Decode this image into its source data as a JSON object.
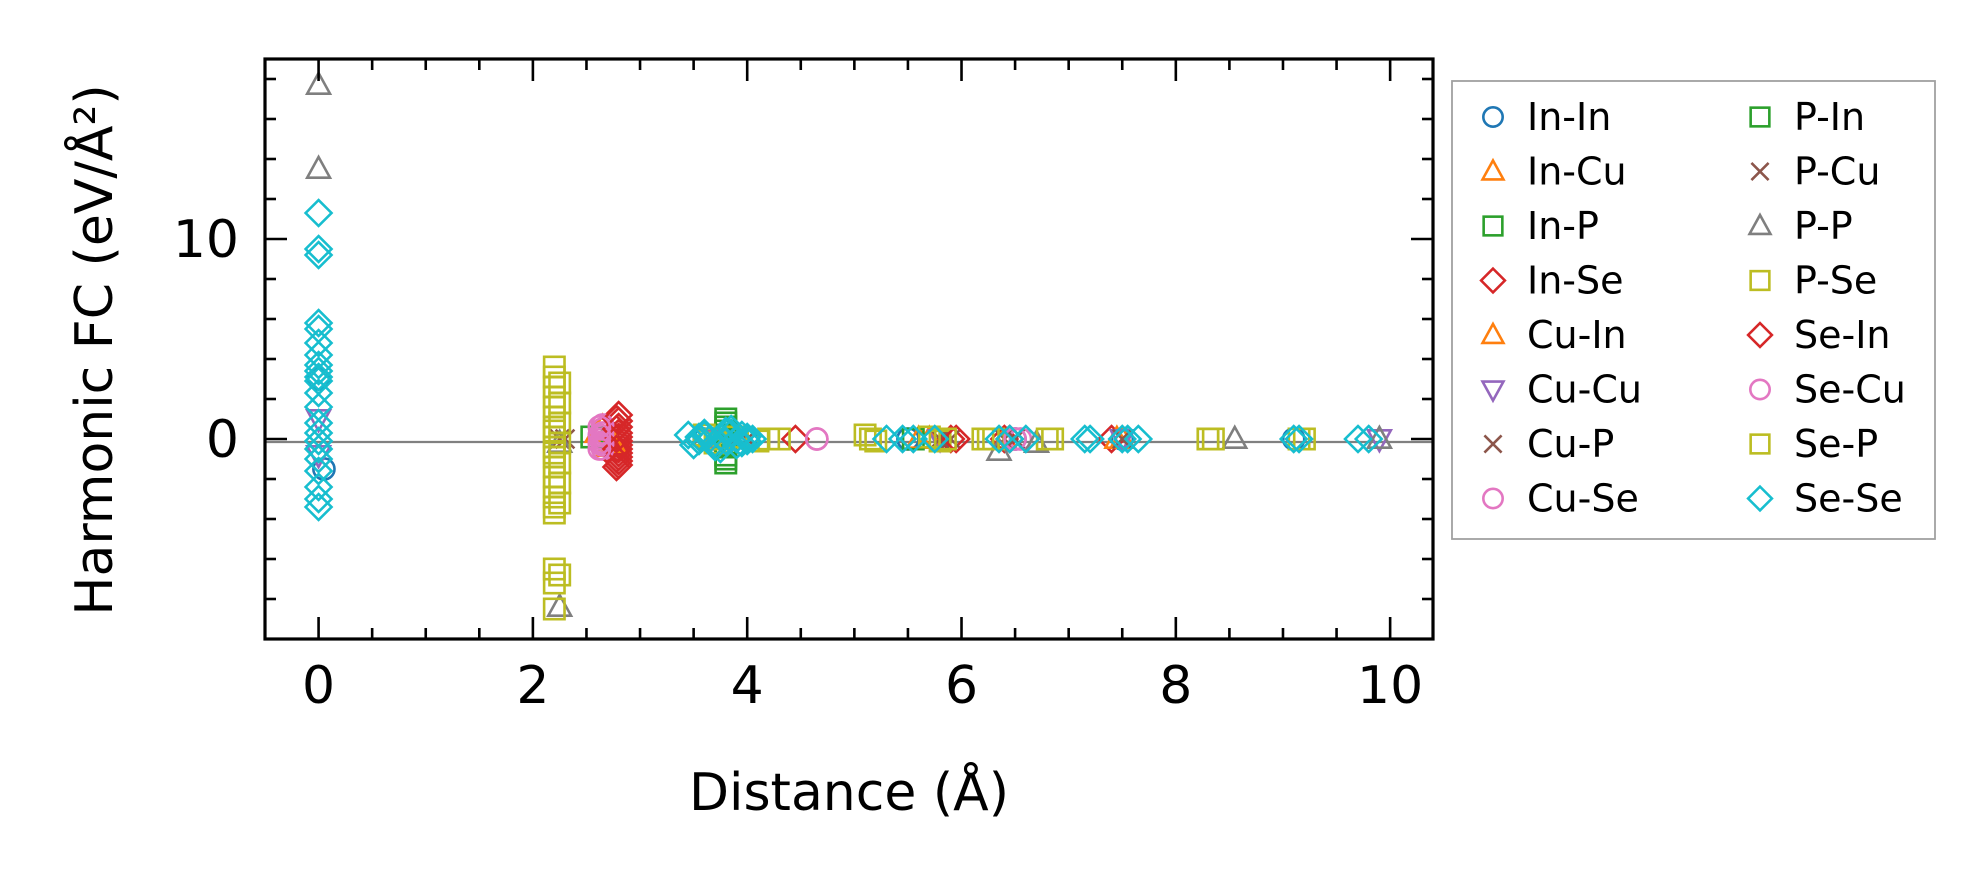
{
  "chart_data": {
    "type": "scatter",
    "title": "",
    "xlabel": "Distance (Å)",
    "ylabel": "Harmonic FC (eV/Å²)",
    "xlim": [
      -0.5,
      10.4
    ],
    "ylim": [
      -10,
      19
    ],
    "xticks": [
      "0",
      "2",
      "4",
      "6",
      "8",
      "10"
    ],
    "yticks": [
      "0",
      "10"
    ],
    "xtick_values": [
      0,
      2,
      4,
      6,
      8,
      10
    ],
    "ytick_values": [
      0,
      10
    ],
    "zero_line": true,
    "grid": false,
    "legend_position": "outside-right",
    "series": [
      {
        "name": "In-In",
        "marker": "circle",
        "color": "#1f77b4",
        "x": [
          0,
          0.05,
          3.6,
          4.0,
          5.5,
          6.5,
          7.5,
          9.1
        ],
        "y": [
          3.0,
          -1.5,
          0,
          0,
          0,
          0,
          0,
          0
        ]
      },
      {
        "name": "In-Cu",
        "marker": "triangle-up",
        "color": "#ff7f0e",
        "x": [
          2.6,
          2.7,
          3.7,
          5.6,
          6.4,
          7.5
        ],
        "y": [
          0.3,
          -0.4,
          0,
          0,
          0,
          0
        ]
      },
      {
        "name": "In-P",
        "marker": "square",
        "color": "#2ca02c",
        "x": [
          2.55,
          3.8,
          3.8,
          3.8,
          3.8,
          3.8,
          3.8
        ],
        "y": [
          0.1,
          1.0,
          0.6,
          0.2,
          -0.3,
          -0.8,
          -1.2
        ]
      },
      {
        "name": "In-Se",
        "marker": "diamond",
        "color": "#d62728",
        "x": [
          2.8,
          2.8,
          2.8,
          2.8,
          2.8,
          2.8,
          2.8,
          2.8,
          2.8,
          2.8,
          2.8,
          2.8,
          4.45,
          5.9,
          6.4,
          7.4
        ],
        "y": [
          1.2,
          0.9,
          0.6,
          0.3,
          0.1,
          -0.1,
          -0.3,
          -0.5,
          -0.7,
          -0.9,
          -1.1,
          -1.3,
          0,
          0,
          0,
          0
        ]
      },
      {
        "name": "Cu-In",
        "marker": "triangle-up",
        "color": "#ff7f0e",
        "x": [
          2.65,
          2.75,
          5.7,
          7.45
        ],
        "y": [
          0.6,
          -0.2,
          0,
          0
        ]
      },
      {
        "name": "Cu-Cu",
        "marker": "triangle-down",
        "color": "#9467bd",
        "x": [
          0,
          0,
          3.7,
          5.8,
          7.5,
          9.9
        ],
        "y": [
          1.0,
          -0.8,
          0,
          0,
          0,
          0
        ]
      },
      {
        "name": "Cu-P",
        "marker": "x",
        "color": "#8c564b",
        "x": [
          2.3,
          4.0,
          5.8,
          6.4,
          7.5
        ],
        "y": [
          0,
          0,
          0,
          0,
          0
        ]
      },
      {
        "name": "Cu-Se",
        "marker": "circle",
        "color": "#e377c2",
        "x": [
          2.65,
          2.65,
          2.65,
          2.65,
          2.65,
          2.65,
          2.65,
          2.65,
          4.65,
          6.55
        ],
        "y": [
          0.7,
          0.5,
          0.3,
          0.15,
          0.0,
          -0.15,
          -0.3,
          -0.5,
          0,
          0
        ]
      },
      {
        "name": "P-In",
        "marker": "square",
        "color": "#2ca02c",
        "x": [
          3.8,
          3.8,
          3.8,
          3.8,
          5.55
        ],
        "y": [
          0.8,
          0.4,
          -0.4,
          -1.0,
          0
        ]
      },
      {
        "name": "P-Cu",
        "marker": "x",
        "color": "#8c564b",
        "x": [
          2.25,
          3.9,
          5.9,
          6.5
        ],
        "y": [
          0,
          0,
          0,
          0
        ]
      },
      {
        "name": "P-P",
        "marker": "triangle-up",
        "color": "#7f7f7f",
        "x": [
          0,
          0,
          2.25,
          2.25,
          6.35,
          6.7,
          8.55,
          9.9
        ],
        "y": [
          17.7,
          13.5,
          -0.2,
          -8.4,
          -0.6,
          -0.2,
          0,
          0
        ]
      },
      {
        "name": "P-Se",
        "marker": "square",
        "color": "#bcbd22",
        "x": [
          2.2,
          2.2,
          2.2,
          2.2,
          2.2,
          2.2,
          2.2,
          2.2,
          2.2,
          2.2,
          2.2,
          2.2,
          2.2,
          2.2,
          2.2,
          2.2,
          2.2,
          2.2,
          2.2,
          2.2,
          2.2,
          3.6,
          3.7,
          3.9,
          4.1,
          4.3,
          5.1,
          5.2,
          5.7,
          5.8,
          6.2,
          6.3,
          6.8,
          8.3,
          8.35,
          9.15
        ],
        "y": [
          3.6,
          3.1,
          2.6,
          2.1,
          1.6,
          1.1,
          0.6,
          0.1,
          -0.4,
          -0.9,
          -1.4,
          -1.9,
          -2.4,
          -2.9,
          -3.4,
          -3.7,
          -6.5,
          -7.2,
          -8.5,
          0.4,
          -0.7,
          0.2,
          -0.2,
          0.1,
          -0.1,
          0,
          0.2,
          -0.1,
          0.1,
          -0.1,
          0,
          0,
          0,
          0,
          0,
          0
        ]
      },
      {
        "name": "Se-In",
        "marker": "diamond",
        "color": "#d62728",
        "x": [
          2.78,
          2.78,
          2.78,
          2.78,
          2.78,
          2.78,
          5.95,
          6.45
        ],
        "y": [
          1.0,
          0.5,
          0.0,
          -0.5,
          -1.0,
          -1.4,
          0,
          0
        ]
      },
      {
        "name": "Se-Cu",
        "marker": "circle",
        "color": "#e377c2",
        "x": [
          2.62,
          2.62,
          2.62,
          2.62,
          4.65,
          6.5
        ],
        "y": [
          0.6,
          0.2,
          -0.2,
          -0.5,
          0,
          0
        ]
      },
      {
        "name": "Se-P",
        "marker": "square",
        "color": "#bcbd22",
        "x": [
          2.25,
          2.25,
          2.25,
          2.25,
          2.25,
          2.25,
          2.25,
          2.25,
          3.65,
          4.2,
          5.15,
          5.85,
          6.25,
          6.85,
          8.3,
          9.2
        ],
        "y": [
          2.8,
          1.8,
          0.8,
          -0.2,
          -1.2,
          -2.2,
          -3.2,
          -6.8,
          0,
          0,
          0,
          0,
          0,
          0,
          0,
          0
        ]
      },
      {
        "name": "Se-Se",
        "marker": "diamond",
        "color": "#17becf",
        "x": [
          0,
          0,
          0,
          0,
          0,
          0,
          0,
          0,
          0,
          0,
          0,
          0,
          0,
          0,
          0,
          0,
          0,
          0,
          0,
          0,
          0,
          0,
          3.45,
          3.55,
          3.6,
          3.65,
          3.7,
          3.75,
          3.8,
          3.85,
          3.9,
          3.95,
          4.0,
          4.05,
          3.5,
          3.6,
          3.7,
          3.8,
          3.9,
          4.0,
          3.55,
          3.75,
          3.85,
          3.95,
          5.3,
          5.45,
          5.55,
          5.75,
          6.35,
          6.45,
          6.6,
          7.15,
          7.2,
          7.5,
          7.55,
          7.65,
          9.1,
          9.15,
          9.7,
          9.8
        ],
        "y": [
          11.3,
          9.5,
          9.2,
          5.8,
          5.5,
          4.8,
          4.2,
          3.7,
          3.4,
          3.1,
          2.9,
          2.3,
          1.6,
          0.8,
          0.3,
          -0.1,
          -0.5,
          -1.0,
          -1.6,
          -2.4,
          -3.0,
          -3.4,
          0.2,
          -0.1,
          0.3,
          0.0,
          -0.2,
          0.1,
          -0.1,
          0.3,
          0.0,
          -0.2,
          0.1,
          0.0,
          -0.3,
          0.2,
          -0.4,
          0.4,
          -0.3,
          -0.1,
          0.1,
          -0.5,
          0.5,
          0.2,
          0,
          0,
          0,
          0,
          0,
          0,
          0,
          0,
          0,
          0,
          0,
          0,
          0,
          0,
          0,
          0
        ]
      }
    ]
  }
}
